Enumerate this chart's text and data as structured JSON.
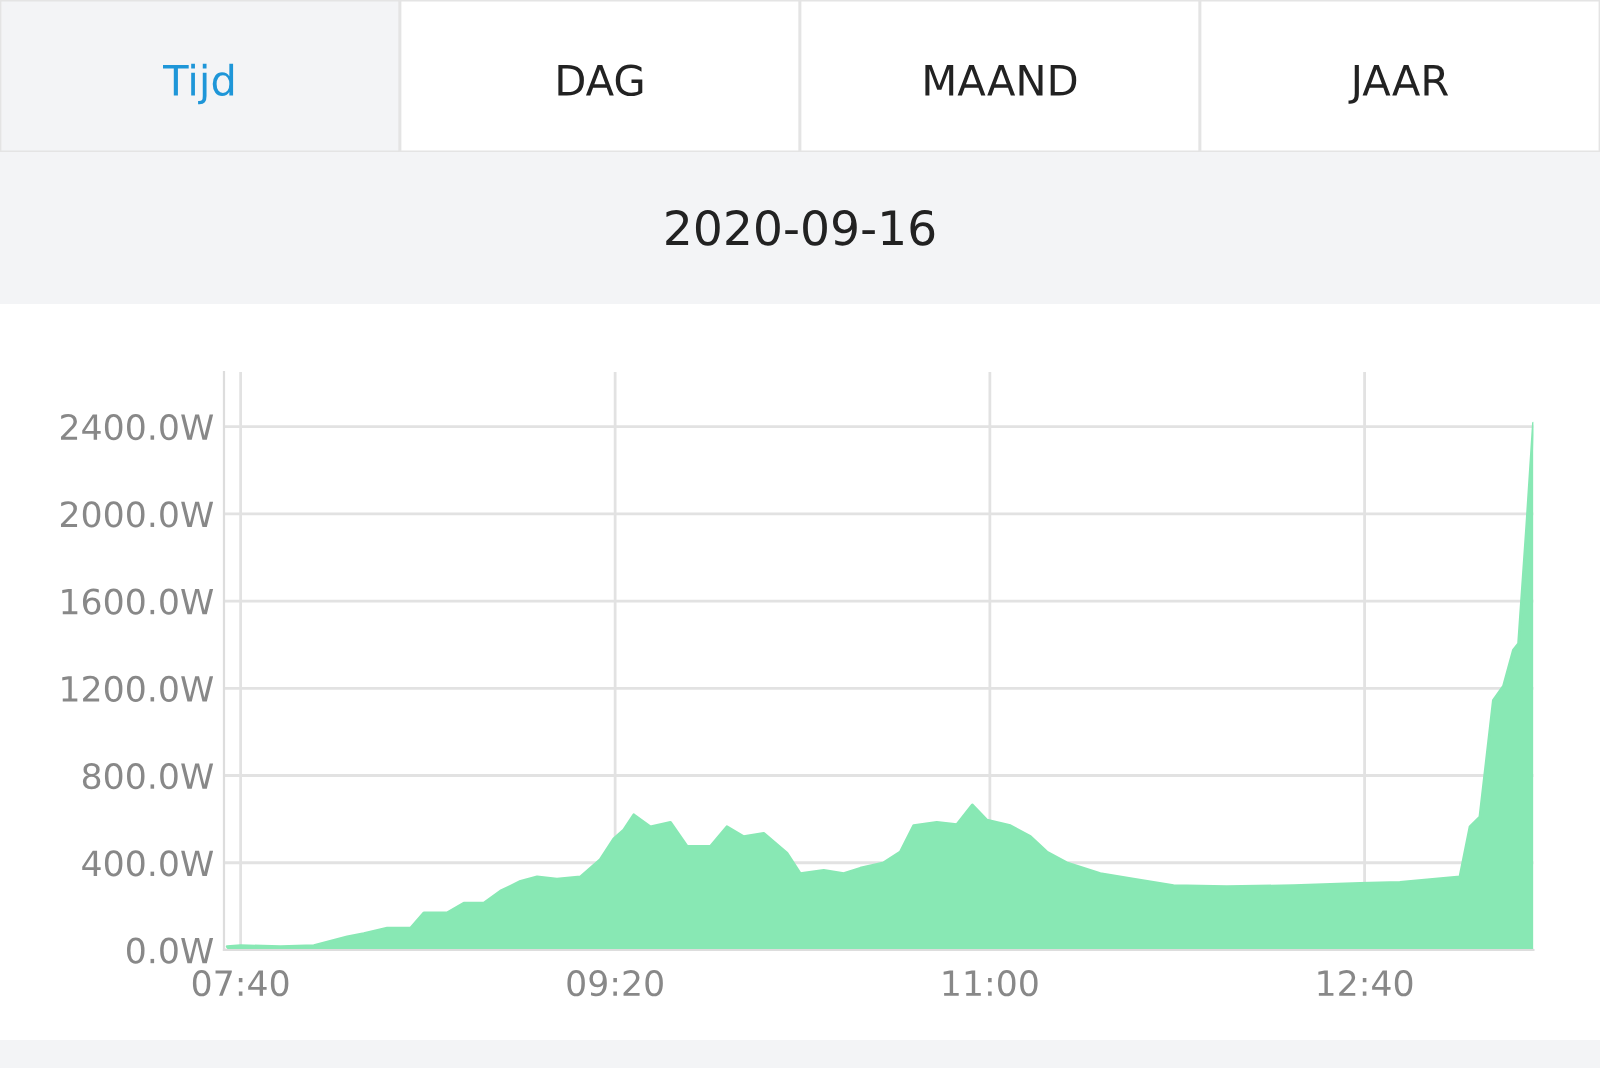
{
  "chart_data": {
    "type": "area",
    "title": "2020-09-16",
    "annotations": [
      "Tijd",
      "DAG",
      "MAAND",
      "JAAR"
    ],
    "x": [
      7.607,
      7.667,
      7.845,
      7.993,
      8.141,
      8.215,
      8.319,
      8.423,
      8.482,
      8.585,
      8.66,
      8.749,
      8.823,
      8.912,
      8.986,
      9.074,
      9.178,
      9.267,
      9.327,
      9.371,
      9.416,
      9.49,
      9.579,
      9.653,
      9.757,
      9.83,
      9.905,
      9.994,
      10.097,
      10.157,
      10.261,
      10.35,
      10.424,
      10.528,
      10.602,
      10.661,
      10.764,
      10.853,
      10.922,
      10.987,
      11.091,
      11.18,
      11.253,
      11.342,
      11.491,
      11.639,
      11.817,
      12.054,
      12.351,
      12.647,
      12.824,
      13.091,
      13.136,
      13.18,
      13.24,
      13.285,
      13.329,
      13.352,
      13.388,
      13.418
    ],
    "series": [
      {
        "color": "#88e8b4",
        "values": [
          15,
          20,
          15,
          20,
          60,
          75,
          100,
          100,
          170,
          170,
          215,
          215,
          270,
          315,
          335,
          325,
          335,
          415,
          510,
          550,
          620,
          565,
          585,
          475,
          475,
          565,
          520,
          535,
          445,
          350,
          365,
          350,
          375,
          400,
          450,
          570,
          585,
          575,
          665,
          595,
          570,
          520,
          450,
          400,
          350,
          325,
          295,
          290,
          295,
          305,
          310,
          335,
          565,
          610,
          1145,
          1210,
          1375,
          1405,
          1940,
          2415
        ]
      }
    ],
    "xlim": [
      7.593,
      13.418
    ],
    "xticks": [
      {
        "value": 7.667,
        "label": "07:40"
      },
      {
        "value": 9.333,
        "label": "09:20"
      },
      {
        "value": 11.0,
        "label": "11:00"
      },
      {
        "value": 12.667,
        "label": "12:40"
      }
    ],
    "ylim": [
      0,
      2650
    ],
    "yticks": [
      {
        "value": 0,
        "label": "0.0W"
      },
      {
        "value": 400,
        "label": "400.0W"
      },
      {
        "value": 800,
        "label": "800.0W"
      },
      {
        "value": 1200,
        "label": "1200.0W"
      },
      {
        "value": 1600,
        "label": "1600.0W"
      },
      {
        "value": 2000,
        "label": "2000.0W"
      },
      {
        "value": 2400,
        "label": "2400.0W"
      }
    ],
    "grid": true,
    "legend": false
  }
}
